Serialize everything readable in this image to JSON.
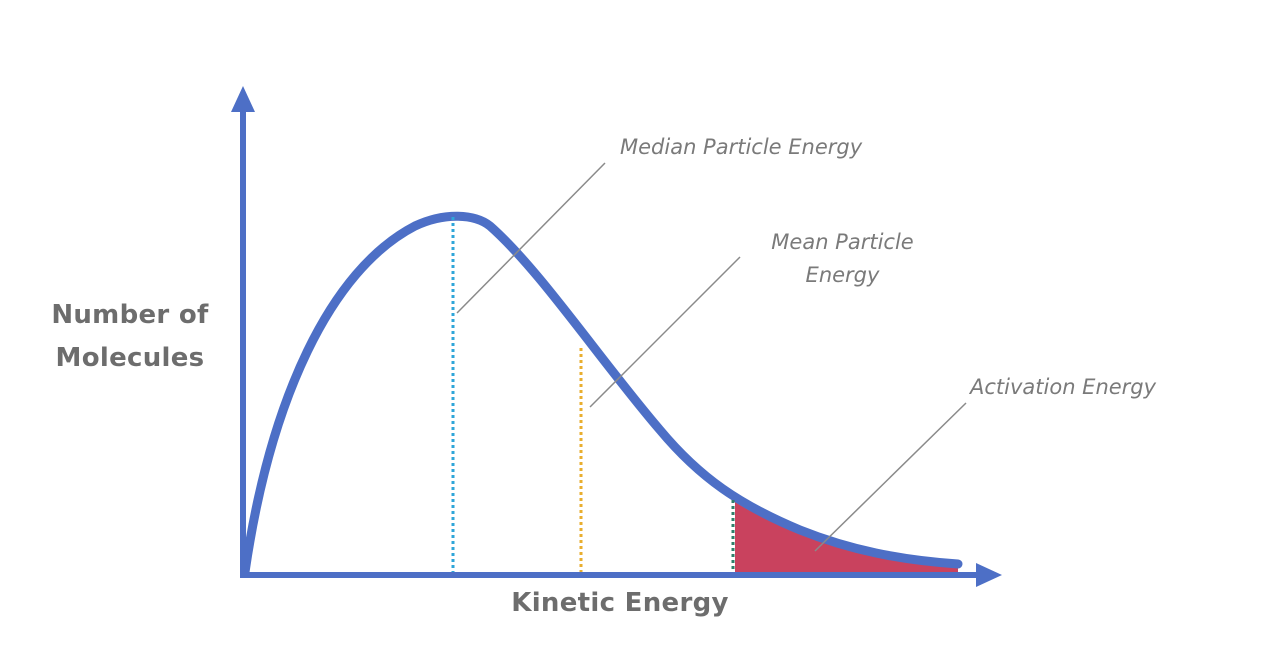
{
  "axes": {
    "y_label_line1": "Number of",
    "y_label_line2": "Molecules",
    "x_label": "Kinetic Energy"
  },
  "annotations": {
    "median": "Median Particle Energy",
    "mean_line1": "Mean Particle",
    "mean_line2": "Energy",
    "activation": "Activation Energy"
  },
  "colors": {
    "axis": "#4d6fc6",
    "curve": "#4d6fc6",
    "median_line": "#2fa6d9",
    "mean_line": "#e9ae2e",
    "activation_line": "#2f7f6a",
    "activation_fill": "#c9425e",
    "leader_line": "#8a8a8a",
    "label_text": "#6d6d6d"
  }
}
